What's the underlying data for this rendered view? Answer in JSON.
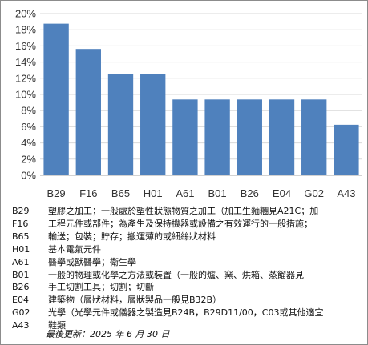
{
  "chart_data": {
    "type": "bar",
    "categories": [
      "B29",
      "F16",
      "B65",
      "H01",
      "A61",
      "B01",
      "B26",
      "E04",
      "G02",
      "A43"
    ],
    "values": [
      18.75,
      15.625,
      12.5,
      12.5,
      9.375,
      9.375,
      9.375,
      9.375,
      9.375,
      6.25
    ],
    "ylim": [
      0,
      20
    ],
    "yticks": [
      "0%",
      "2%",
      "4%",
      "6%",
      "8%",
      "10%",
      "12%",
      "14%",
      "16%",
      "18%",
      "20%"
    ],
    "grid": true,
    "bar_color": "#4f81bd",
    "title": "",
    "xlabel": "",
    "ylabel": ""
  },
  "legend_rows": [
    {
      "code": "B29",
      "desc": "塑膠之加工；一般處於塑性狀態物質之加工（加工生麵糰見A21C；加",
      "cont": "工程元件或部件；為產生及保持機器或設備之有效運行的一般措施；"
    },
    {
      "code": "F16",
      "desc": "",
      "cont": ""
    },
    {
      "code": "B65",
      "desc": "輸送；包裝；貯存；搬運薄的或細絲狀材料",
      "cont": ""
    },
    {
      "code": "H01",
      "desc": "基本電氣元件",
      "cont": ""
    },
    {
      "code": "A61",
      "desc": "醫學或獸醫學；衛生學",
      "cont": ""
    },
    {
      "code": "B01",
      "desc": "一般的物理或化學之方法或裝置（一般的爐、窯、烘箱、蒸餾器見",
      "cont": ""
    },
    {
      "code": "B26",
      "desc": "手工切割工具；切割；切斷",
      "cont": ""
    },
    {
      "code": "E04",
      "desc": "建築物（層狀材料，層狀製品一般見B32B）",
      "cont": ""
    },
    {
      "code": "G02",
      "desc": "光學（光學元件或儀器之製造見B24B，B29D11/00，C03或其他適宜",
      "cont": ""
    },
    {
      "code": "A43",
      "desc": "鞋類",
      "cont": ""
    }
  ],
  "last_updated": "最後更新：2025 年 6 月 30 日"
}
